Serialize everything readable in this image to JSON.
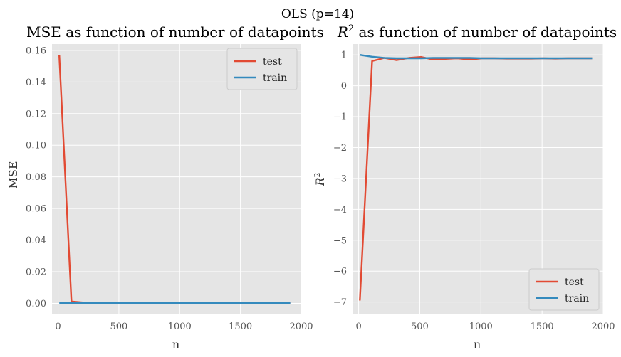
{
  "figure": {
    "suptitle": "OLS (p=14)"
  },
  "chart_data": [
    {
      "type": "line",
      "title": "MSE as function of number of datapoints",
      "xlabel": "n",
      "ylabel": "MSE",
      "xlim": [
        -50,
        2000
      ],
      "ylim": [
        -0.007,
        0.164
      ],
      "xticks": [
        0,
        500,
        1000,
        1500,
        2000
      ],
      "yticks": [
        0.0,
        0.02,
        0.04,
        0.06,
        0.08,
        0.1,
        0.12,
        0.14,
        0.16
      ],
      "ytick_labels": [
        "0.00",
        "0.02",
        "0.04",
        "0.06",
        "0.08",
        "0.10",
        "0.12",
        "0.14",
        "0.16"
      ],
      "grid": true,
      "legend": "top-right",
      "x": [
        10,
        110,
        210,
        310,
        410,
        510,
        610,
        710,
        810,
        910,
        1010,
        1110,
        1210,
        1310,
        1410,
        1510,
        1610,
        1710,
        1810,
        1910
      ],
      "series": [
        {
          "name": "test",
          "color": "#E24A33",
          "values": [
            0.157,
            0.0012,
            0.0005,
            0.0004,
            0.0003,
            0.0003,
            0.0002,
            0.0002,
            0.0002,
            0.0002,
            0.0002,
            0.0002,
            0.0002,
            0.0002,
            0.0002,
            0.0002,
            0.0002,
            0.0002,
            0.0002,
            0.0002
          ]
        },
        {
          "name": "train",
          "color": "#348ABD",
          "values": [
            0.0001,
            0.0001,
            0.0001,
            0.0001,
            0.0001,
            0.0001,
            0.0001,
            0.0001,
            0.0001,
            0.0001,
            0.0001,
            0.0001,
            0.0001,
            0.0001,
            0.0001,
            0.0001,
            0.0001,
            0.0001,
            0.0001,
            0.0001
          ]
        }
      ]
    },
    {
      "type": "line",
      "title_base": "R",
      "title_sup": "2",
      "title_rest": " as function of number of datapoints",
      "xlabel": "n",
      "ylabel_base": "R",
      "ylabel_sup": "2",
      "xlim": [
        -50,
        2000
      ],
      "ylim": [
        -7.4,
        1.35
      ],
      "xticks": [
        0,
        500,
        1000,
        1500,
        2000
      ],
      "yticks": [
        -7,
        -6,
        -5,
        -4,
        -3,
        -2,
        -1,
        0,
        1
      ],
      "ytick_labels": [
        "−7",
        "−6",
        "−5",
        "−4",
        "−3",
        "−2",
        "−1",
        "0",
        "1"
      ],
      "grid": true,
      "legend": "bottom-right",
      "x": [
        10,
        110,
        210,
        310,
        410,
        510,
        610,
        710,
        810,
        910,
        1010,
        1110,
        1210,
        1310,
        1410,
        1510,
        1610,
        1710,
        1810,
        1910
      ],
      "series": [
        {
          "name": "test",
          "color": "#E24A33",
          "values": [
            -6.95,
            0.8,
            0.9,
            0.83,
            0.9,
            0.93,
            0.85,
            0.87,
            0.89,
            0.85,
            0.89,
            0.89,
            0.88,
            0.88,
            0.88,
            0.89,
            0.88,
            0.89,
            0.89,
            0.89
          ]
        },
        {
          "name": "train",
          "color": "#348ABD",
          "values": [
            1.0,
            0.94,
            0.9,
            0.89,
            0.89,
            0.89,
            0.9,
            0.9,
            0.9,
            0.9,
            0.89,
            0.89,
            0.89,
            0.89,
            0.89,
            0.89,
            0.89,
            0.89,
            0.89,
            0.89
          ]
        }
      ]
    }
  ]
}
